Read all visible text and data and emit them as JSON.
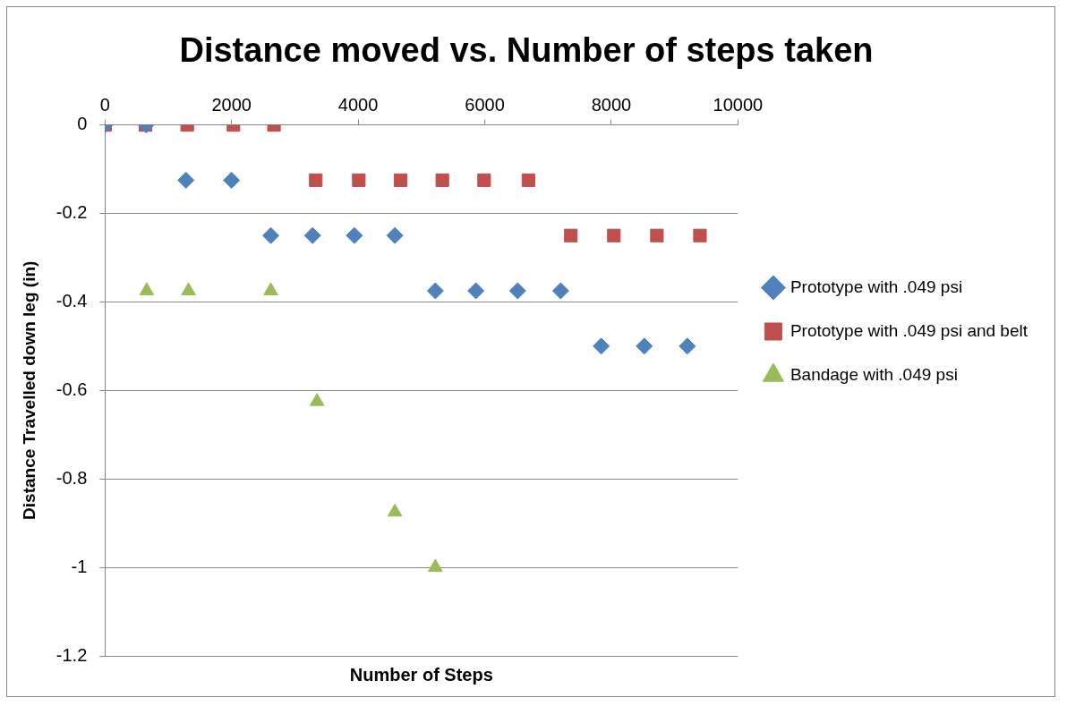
{
  "chart_data": {
    "type": "scatter",
    "title": "Distance moved vs. Number of steps taken",
    "xlabel": "Number of Steps",
    "ylabel": "Distance Travelled down leg (in)",
    "xlim": [
      0,
      10000
    ],
    "xticks": [
      0,
      2000,
      4000,
      6000,
      8000,
      10000
    ],
    "ylim": [
      -1.2,
      0
    ],
    "yticks": [
      -1.2,
      -1,
      -0.8,
      -0.6,
      -0.4,
      -0.2,
      0
    ],
    "grid": "y",
    "legend": "right",
    "series": [
      {
        "name": "Prototype with .049 psi",
        "color": "#4f81bd",
        "marker": "diamond",
        "x": [
          0,
          650,
          1280,
          2000,
          2620,
          3280,
          3940,
          4580,
          5220,
          5860,
          6520,
          7200,
          7840,
          8520,
          9200
        ],
        "values": [
          0,
          0,
          -0.125,
          -0.125,
          -0.25,
          -0.25,
          -0.25,
          -0.25,
          -0.375,
          -0.375,
          -0.375,
          -0.375,
          -0.5,
          -0.5,
          -0.5
        ]
      },
      {
        "name": "Prototype with .049 psi and belt",
        "color": "#c0504d",
        "marker": "square",
        "x": [
          0,
          640,
          1300,
          2030,
          2670,
          3330,
          4010,
          4670,
          5330,
          5990,
          6690,
          7360,
          8040,
          8720,
          9400
        ],
        "values": [
          0,
          0,
          0,
          0,
          0,
          -0.125,
          -0.125,
          -0.125,
          -0.125,
          -0.125,
          -0.125,
          -0.25,
          -0.25,
          -0.25,
          -0.25
        ]
      },
      {
        "name": "Bandage with .049 psi",
        "color": "#9bbb59",
        "marker": "triangle",
        "x": [
          0,
          660,
          1320,
          2620,
          3350,
          4580,
          5220
        ],
        "values": [
          0,
          -0.375,
          -0.375,
          -0.375,
          -0.625,
          -0.875,
          -1
        ]
      }
    ]
  }
}
